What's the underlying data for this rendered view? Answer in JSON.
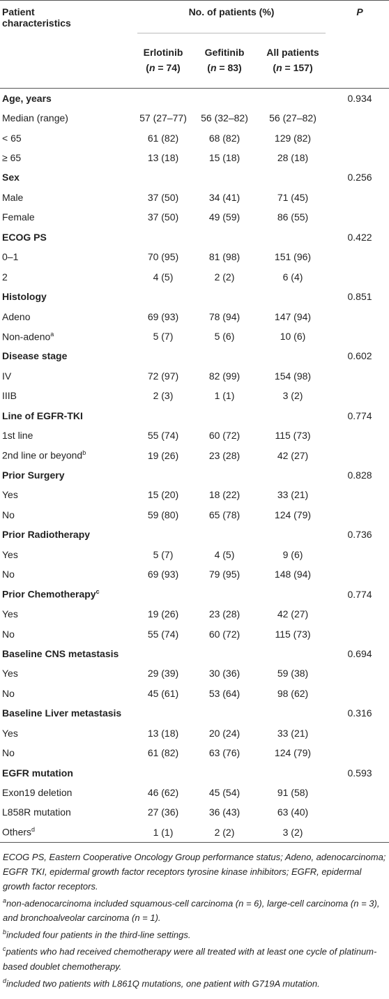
{
  "table": {
    "header": {
      "characteristics": "Patient characteristics",
      "group": "No. of patients (%)",
      "p": "P",
      "columns": [
        {
          "name": "Erlotinib",
          "n": [
            "(",
            "n",
            " = 74)"
          ]
        },
        {
          "name": "Gefitinib",
          "n": [
            "(",
            "n",
            " = 83)"
          ]
        },
        {
          "name": "All patients",
          "n": [
            "(",
            "n",
            " = 157)"
          ]
        }
      ]
    },
    "sections": [
      {
        "title": "Age, years",
        "p": "0.934",
        "rows": [
          {
            "label": "Median (range)",
            "values": [
              "57 (27–77)",
              "56 (32–82)",
              "56 (27–82)"
            ]
          },
          {
            "label": "< 65",
            "values": [
              "61 (82)",
              "68 (82)",
              "129 (82)"
            ]
          },
          {
            "label": "≥ 65",
            "values": [
              "13 (18)",
              "15 (18)",
              "28 (18)"
            ]
          }
        ]
      },
      {
        "title": "Sex",
        "p": "0.256",
        "rows": [
          {
            "label": "Male",
            "values": [
              "37 (50)",
              "34 (41)",
              "71 (45)"
            ]
          },
          {
            "label": "Female",
            "values": [
              "37 (50)",
              "49 (59)",
              "86 (55)"
            ]
          }
        ]
      },
      {
        "title": "ECOG PS",
        "p": "0.422",
        "rows": [
          {
            "label": "0–1",
            "values": [
              "70 (95)",
              "81 (98)",
              "151 (96)"
            ]
          },
          {
            "label": "2",
            "values": [
              "4 (5)",
              "2 (2)",
              "6 (4)"
            ]
          }
        ]
      },
      {
        "title": "Histology",
        "p": "0.851",
        "rows": [
          {
            "label": "Adeno",
            "values": [
              "69 (93)",
              "78 (94)",
              "147 (94)"
            ]
          },
          {
            "label": "Non-adeno",
            "sup": "a",
            "values": [
              "5 (7)",
              "5 (6)",
              "10 (6)"
            ]
          }
        ]
      },
      {
        "title": "Disease stage",
        "p": "0.602",
        "rows": [
          {
            "label": "IV",
            "values": [
              "72 (97)",
              "82 (99)",
              "154 (98)"
            ]
          },
          {
            "label": "IIIB",
            "values": [
              "2 (3)",
              "1 (1)",
              "3 (2)"
            ]
          }
        ]
      },
      {
        "title": "Line of EGFR-TKI",
        "p": "0.774",
        "rows": [
          {
            "label": "1st line",
            "values": [
              "55 (74)",
              "60 (72)",
              "115 (73)"
            ]
          },
          {
            "label": "2nd line or beyond",
            "sup": "b",
            "values": [
              "19 (26)",
              "23 (28)",
              "42 (27)"
            ]
          }
        ]
      },
      {
        "title": "Prior Surgery",
        "p": "0.828",
        "rows": [
          {
            "label": "Yes",
            "values": [
              "15 (20)",
              "18 (22)",
              "33 (21)"
            ]
          },
          {
            "label": "No",
            "values": [
              "59 (80)",
              "65 (78)",
              "124 (79)"
            ]
          }
        ]
      },
      {
        "title": "Prior Radiotherapy",
        "p": "0.736",
        "rows": [
          {
            "label": "Yes",
            "values": [
              "5 (7)",
              "4 (5)",
              "9 (6)"
            ]
          },
          {
            "label": "No",
            "values": [
              "69 (93)",
              "79 (95)",
              "148 (94)"
            ]
          }
        ]
      },
      {
        "title": "Prior Chemotherapy",
        "sup": "c",
        "p": "0.774",
        "rows": [
          {
            "label": "Yes",
            "values": [
              "19 (26)",
              "23 (28)",
              "42 (27)"
            ]
          },
          {
            "label": "No",
            "values": [
              "55 (74)",
              "60 (72)",
              "115 (73)"
            ]
          }
        ]
      },
      {
        "title": "Baseline CNS metastasis",
        "p": "0.694",
        "rows": [
          {
            "label": "Yes",
            "values": [
              "29 (39)",
              "30 (36)",
              "59 (38)"
            ]
          },
          {
            "label": "No",
            "values": [
              "45 (61)",
              "53 (64)",
              "98 (62)"
            ]
          }
        ]
      },
      {
        "title": "Baseline Liver metastasis",
        "p": "0.316",
        "rows": [
          {
            "label": "Yes",
            "values": [
              "13 (18)",
              "20 (24)",
              "33 (21)"
            ]
          },
          {
            "label": "No",
            "values": [
              "61 (82)",
              "63 (76)",
              "124 (79)"
            ]
          }
        ]
      },
      {
        "title": "EGFR mutation",
        "p": "0.593",
        "rows": [
          {
            "label": "Exon19 deletion",
            "values": [
              "46 (62)",
              "45 (54)",
              "91 (58)"
            ]
          },
          {
            "label": "L858R mutation",
            "values": [
              "27 (36)",
              "36 (43)",
              "63 (40)"
            ]
          },
          {
            "label": "Others",
            "sup": "d",
            "values": [
              "1 (1)",
              "2 (2)",
              "3 (2)"
            ]
          }
        ]
      }
    ]
  },
  "footnotes": [
    {
      "text": "ECOG PS, Eastern Cooperative Oncology Group performance status; Adeno, adenocarcinoma; EGFR TKI, epidermal growth factor receptors tyrosine kinase inhibitors; EGFR, epidermal growth factor receptors."
    },
    {
      "mark": "a",
      "text": "non-adenocarcinoma included squamous-cell carcinoma (n = 6), large-cell carcinoma (n = 3), and bronchoalveolar carcinoma (n = 1)."
    },
    {
      "mark": "b",
      "text": "included four patients in the third-line settings."
    },
    {
      "mark": "c",
      "text": "patients who had received chemotherapy were all treated with at least one cycle of platinum-based doublet chemotherapy."
    },
    {
      "mark": "d",
      "text": "included two patients with L861Q mutations, one patient with G719A mutation."
    }
  ]
}
